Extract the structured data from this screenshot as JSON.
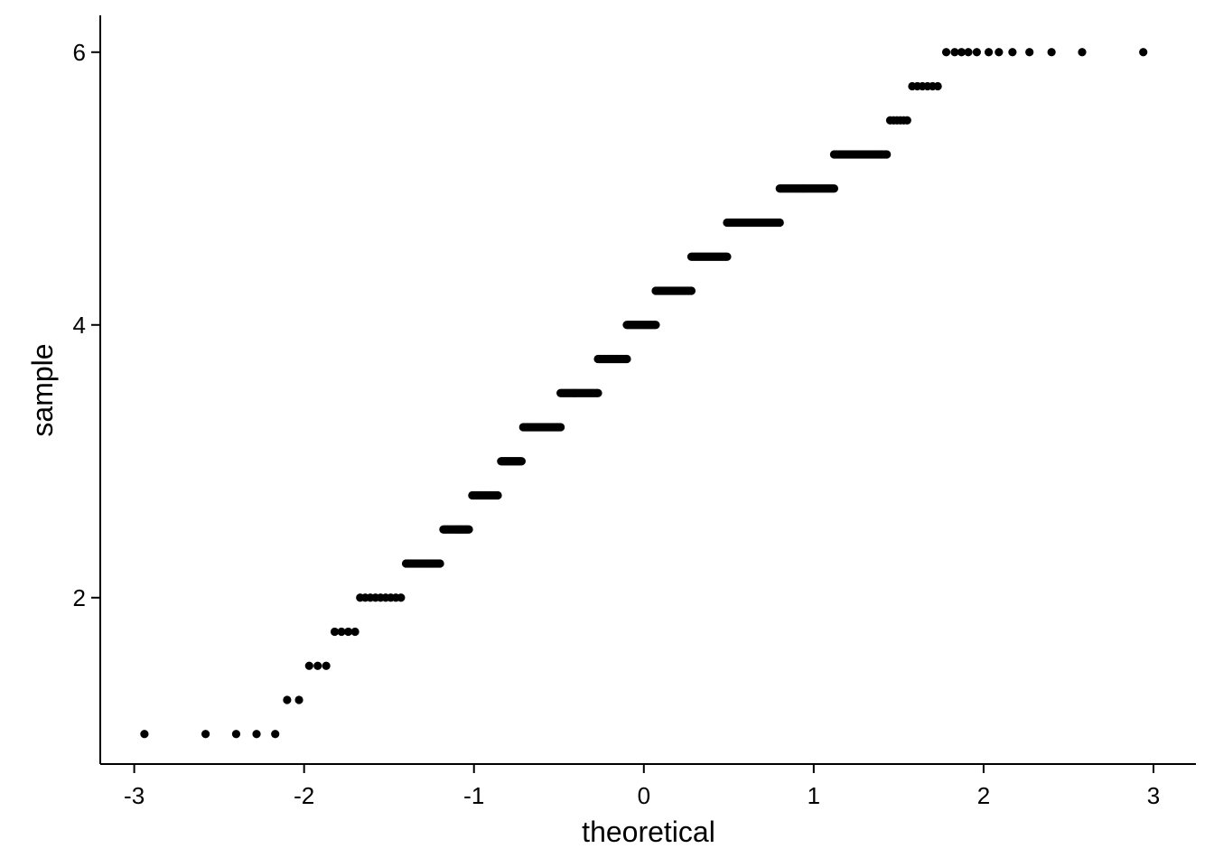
{
  "chart_data": {
    "type": "scatter",
    "title": "",
    "xlabel": "theoretical",
    "ylabel": "sample",
    "xlim": [
      -3.2,
      3.25
    ],
    "ylim": [
      0.78,
      6.27
    ],
    "grid": false,
    "legend": "none",
    "point_color": "#000000",
    "x_ticks": [
      -3,
      -2,
      -1,
      0,
      1,
      2,
      3
    ],
    "x_tick_labels": [
      "-3",
      "-2",
      "-1",
      "0",
      "1",
      "2",
      "3"
    ],
    "y_ticks": [
      2,
      4,
      6
    ],
    "y_tick_labels": [
      "2",
      "4",
      "6"
    ],
    "levels": [
      {
        "y": 1.0,
        "x": [
          -2.94,
          -2.58,
          -2.4,
          -2.28,
          -2.17
        ]
      },
      {
        "y": 1.25,
        "x": [
          -2.1,
          -2.03
        ]
      },
      {
        "y": 1.5,
        "x": [
          -1.97,
          -1.92,
          -1.87
        ]
      },
      {
        "y": 1.75,
        "x": [
          -1.82,
          -1.78,
          -1.74,
          -1.7
        ]
      },
      {
        "y": 2.0,
        "x_range": [
          -1.67,
          -1.43
        ],
        "n": 9
      },
      {
        "y": 2.25,
        "x_range": [
          -1.4,
          -1.2
        ],
        "n": 24
      },
      {
        "y": 2.5,
        "x_range": [
          -1.18,
          -1.03
        ],
        "n": 24
      },
      {
        "y": 2.75,
        "x_range": [
          -1.01,
          -0.86
        ],
        "n": 24
      },
      {
        "y": 3.0,
        "x_range": [
          -0.84,
          -0.72
        ],
        "n": 24
      },
      {
        "y": 3.25,
        "x_range": [
          -0.71,
          -0.49
        ],
        "n": 30
      },
      {
        "y": 3.5,
        "x_range": [
          -0.49,
          -0.27
        ],
        "n": 30
      },
      {
        "y": 3.75,
        "x_range": [
          -0.27,
          -0.1
        ],
        "n": 26
      },
      {
        "y": 4.0,
        "x_range": [
          -0.1,
          0.07
        ],
        "n": 26
      },
      {
        "y": 4.25,
        "x_range": [
          0.07,
          0.28
        ],
        "n": 30
      },
      {
        "y": 4.5,
        "x_range": [
          0.28,
          0.49
        ],
        "n": 30
      },
      {
        "y": 4.75,
        "x_range": [
          0.49,
          0.8
        ],
        "n": 40
      },
      {
        "y": 5.0,
        "x_range": [
          0.8,
          1.12
        ],
        "n": 40
      },
      {
        "y": 5.25,
        "x_range": [
          1.12,
          1.43
        ],
        "n": 36
      },
      {
        "y": 5.5,
        "x_range": [
          1.45,
          1.55
        ],
        "n": 6
      },
      {
        "y": 5.75,
        "x": [
          1.58,
          1.61,
          1.64,
          1.67,
          1.7,
          1.73
        ]
      },
      {
        "y": 6.0,
        "x": [
          1.78,
          1.83,
          1.87,
          1.91,
          1.96,
          2.03,
          2.09,
          2.17,
          2.27,
          2.4,
          2.58,
          2.94
        ]
      }
    ]
  }
}
